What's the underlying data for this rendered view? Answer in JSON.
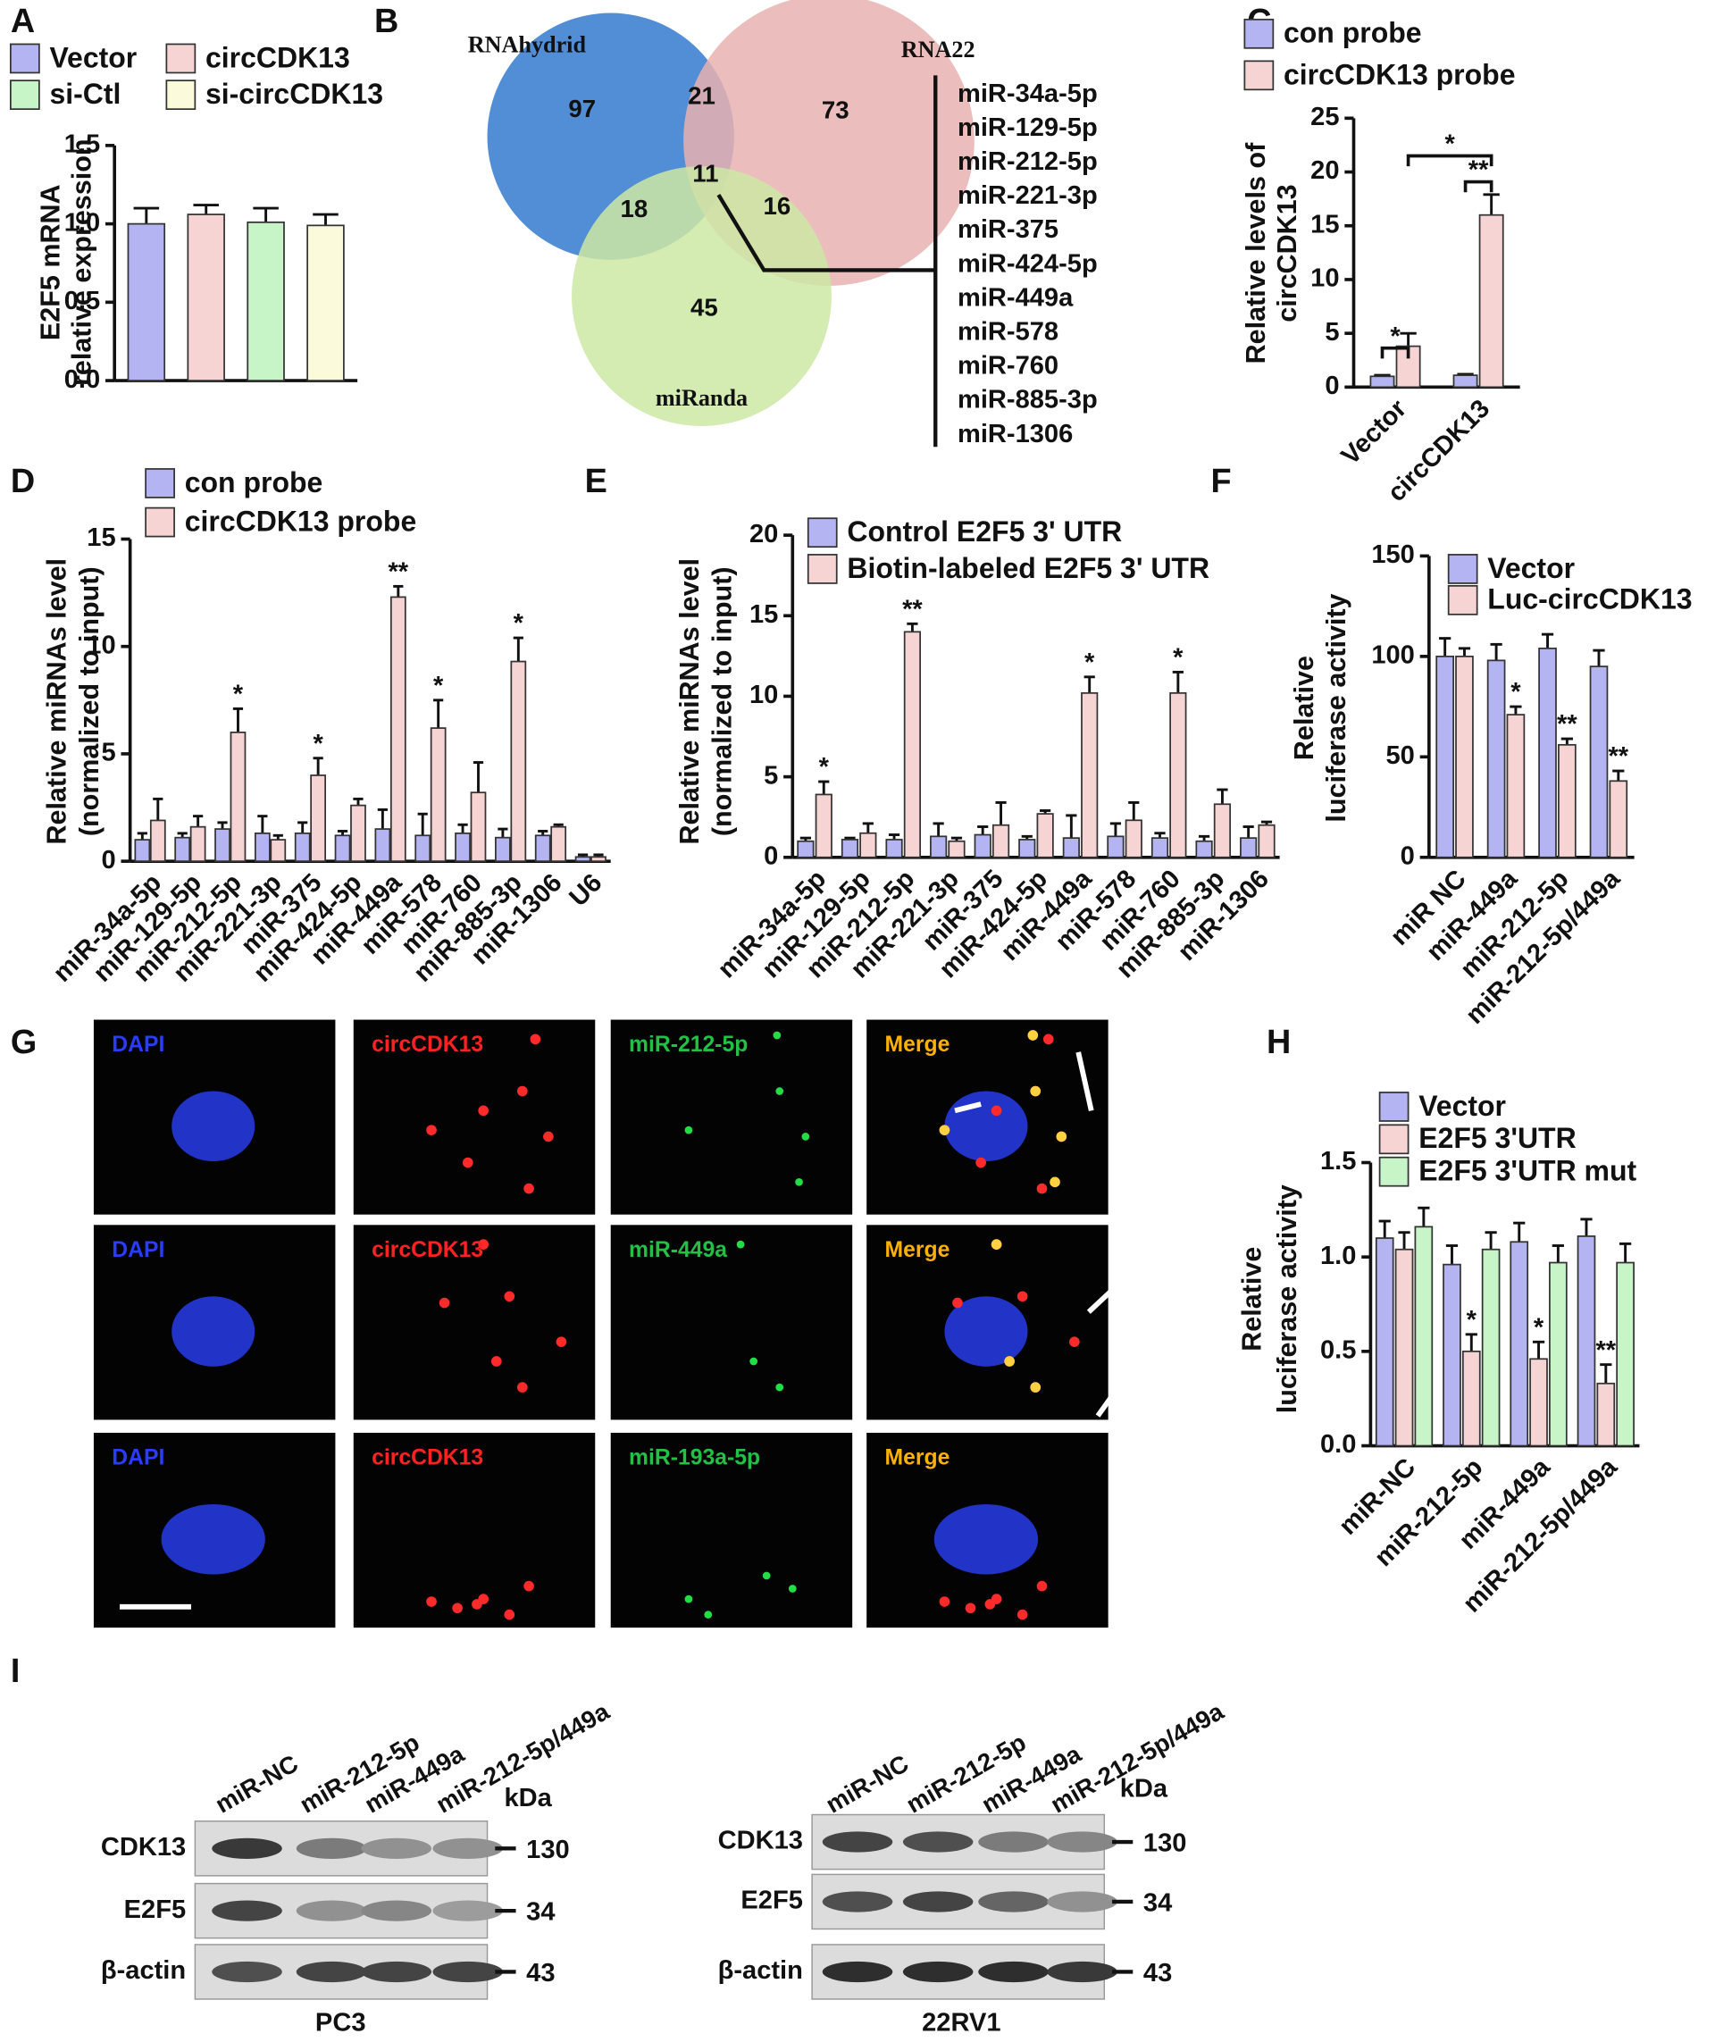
{
  "chart_data": [
    {
      "type": "bar",
      "panel": "A",
      "ylabel": [
        "E2F5 mRNA",
        "relative expression"
      ],
      "categories": [
        null
      ],
      "series": [
        {
          "name": "Vector",
          "color": "#b4b4f2",
          "values": [
            1.0
          ],
          "errors": [
            0.1
          ]
        },
        {
          "name": "circCDK13",
          "color": "#f7d4d4",
          "values": [
            1.06
          ],
          "errors": [
            0.06
          ]
        },
        {
          "name": "si-Ctl",
          "color": "#c8f5c8",
          "values": [
            1.01
          ],
          "errors": [
            0.09
          ]
        },
        {
          "name": "si-circCDK13",
          "color": "#fbfbdc",
          "values": [
            0.99
          ],
          "errors": [
            0.07
          ]
        }
      ],
      "ylim": [
        0,
        1.5
      ],
      "yticks": [
        {
          "value": 0,
          "label": "0.0"
        },
        {
          "value": 0.5,
          "label": "0.5"
        },
        {
          "value": 1,
          "label": "1.0"
        },
        {
          "value": 1.5,
          "label": "1.5"
        }
      ]
    },
    {
      "type": "bar",
      "panel": "C",
      "ylabel": [
        "Relative levels of",
        "circCDK13"
      ],
      "categories": [
        "Vector",
        "circCDK13"
      ],
      "series": [
        {
          "name": "con probe",
          "color": "#b4b4f2",
          "values": [
            1.0,
            1.1
          ],
          "errors": [
            0.1,
            0.1
          ]
        },
        {
          "name": "circCDK13 probe",
          "color": "#f7d4d4",
          "values": [
            3.8,
            16.0
          ],
          "errors": [
            1.2,
            1.9
          ]
        }
      ],
      "annotations": [
        "*",
        "**",
        "*"
      ],
      "ylim": [
        0,
        25
      ],
      "yticks": [
        0,
        5,
        10,
        15,
        20,
        25
      ]
    },
    {
      "type": "bar",
      "panel": "D",
      "ylabel": [
        "Relative miRNAs level",
        "(normalized to input)"
      ],
      "categories": [
        "miR-34a-5p",
        "miR-129-5p",
        "miR-212-5p",
        "miR-221-3p",
        "miR-375",
        "miR-424-5p",
        "miR-449a",
        "miR-578",
        "miR-760",
        "miR-885-3p",
        "miR-1306",
        "U6"
      ],
      "series": [
        {
          "name": "con probe",
          "color": "#b4b4f2",
          "values": [
            1.0,
            1.1,
            1.5,
            1.3,
            1.3,
            1.2,
            1.5,
            1.2,
            1.3,
            1.1,
            1.2,
            0.2
          ],
          "errors": [
            0.3,
            0.2,
            0.3,
            0.8,
            0.5,
            0.2,
            0.9,
            1.0,
            0.4,
            0.4,
            0.2,
            0.1
          ]
        },
        {
          "name": "circCDK13 probe",
          "color": "#f7d4d4",
          "values": [
            1.9,
            1.6,
            6.0,
            1.0,
            4.0,
            2.6,
            12.3,
            6.2,
            3.2,
            9.3,
            1.6,
            0.2
          ],
          "errors": [
            1.0,
            0.5,
            1.1,
            0.2,
            0.8,
            0.3,
            0.5,
            1.3,
            1.4,
            1.1,
            0.1,
            0.1
          ],
          "stars": [
            null,
            null,
            "*",
            null,
            "*",
            null,
            "**",
            "*",
            null,
            "*",
            null,
            null
          ]
        }
      ],
      "ylim": [
        0,
        15
      ],
      "yticks": [
        0,
        5,
        10,
        15
      ]
    },
    {
      "type": "bar",
      "panel": "E",
      "ylabel": [
        "Relative miRNAs level",
        "(normalized to input)"
      ],
      "categories": [
        "miR-34a-5p",
        "miR-129-5p",
        "miR-212-5p",
        "miR-221-3p",
        "miR-375",
        "miR-424-5p",
        "miR-449a",
        "miR-578",
        "miR-760",
        "miR-885-3p",
        "miR-1306"
      ],
      "series": [
        {
          "name": "Control E2F5 3' UTR",
          "color": "#b4b4f2",
          "values": [
            1.0,
            1.1,
            1.1,
            1.3,
            1.4,
            1.1,
            1.2,
            1.3,
            1.2,
            1.0,
            1.2
          ],
          "errors": [
            0.2,
            0.1,
            0.3,
            0.8,
            0.5,
            0.2,
            1.4,
            0.8,
            0.3,
            0.3,
            0.7
          ]
        },
        {
          "name": "Biotin-labeled E2F5 3' UTR",
          "color": "#f7d4d4",
          "values": [
            3.9,
            1.5,
            14.0,
            1.0,
            2.0,
            2.7,
            10.2,
            2.3,
            10.2,
            3.3,
            2.0
          ],
          "errors": [
            0.8,
            0.6,
            0.5,
            0.2,
            1.4,
            0.2,
            1.0,
            1.1,
            1.3,
            0.9,
            0.2
          ],
          "stars": [
            "*",
            null,
            "**",
            null,
            null,
            null,
            "*",
            null,
            "*",
            null,
            null
          ]
        }
      ],
      "ylim": [
        0,
        20
      ],
      "yticks": [
        0,
        5,
        10,
        15,
        20
      ]
    },
    {
      "type": "bar",
      "panel": "F",
      "ylabel": [
        "Relative",
        "luciferase activity"
      ],
      "categories": [
        "miR NC",
        "miR-449a",
        "miR-212-5p",
        "miR-212-5p/449a"
      ],
      "series": [
        {
          "name": "Vector",
          "color": "#b4b4f2",
          "values": [
            100,
            98,
            104,
            95
          ],
          "errors": [
            9,
            8,
            7,
            8
          ]
        },
        {
          "name": "Luc-circCDK13",
          "color": "#f7d4d4",
          "values": [
            100,
            71,
            56,
            38
          ],
          "errors": [
            4,
            4,
            3,
            5
          ],
          "stars": [
            null,
            "*",
            "**",
            "**"
          ]
        }
      ],
      "ylim": [
        0,
        150
      ],
      "yticks": [
        0,
        50,
        100,
        150
      ]
    },
    {
      "type": "bar",
      "panel": "H",
      "ylabel": [
        "Relative",
        "luciferase activity"
      ],
      "categories": [
        "miR-NC",
        "miR-212-5p",
        "miR-449a",
        "miR-212-5p/449a"
      ],
      "series": [
        {
          "name": "Vector",
          "color": "#b4b4f2",
          "values": [
            1.1,
            0.96,
            1.08,
            1.11
          ],
          "errors": [
            0.09,
            0.1,
            0.1,
            0.09
          ]
        },
        {
          "name": "E2F5 3'UTR",
          "color": "#f7d4d4",
          "values": [
            1.04,
            0.5,
            0.46,
            0.33
          ],
          "errors": [
            0.09,
            0.09,
            0.09,
            0.1
          ],
          "stars": [
            null,
            "*",
            "*",
            "**"
          ]
        },
        {
          "name": "E2F5 3'UTR mut",
          "color": "#c8f5c8",
          "values": [
            1.16,
            1.04,
            0.97,
            0.97
          ],
          "errors": [
            0.1,
            0.09,
            0.09,
            0.1
          ]
        }
      ],
      "ylim": [
        0,
        1.5
      ],
      "yticks": [
        {
          "value": 0,
          "label": "0.0"
        },
        {
          "value": 0.5,
          "label": "0.5"
        },
        {
          "value": 1,
          "label": "1.0"
        },
        {
          "value": 1.5,
          "label": "1.5"
        }
      ]
    }
  ],
  "venn": {
    "panel": "B",
    "sets": [
      "RNAhydrid",
      "RNA22",
      "miRanda"
    ],
    "region_counts": [
      97,
      21,
      73,
      18,
      11,
      16,
      45
    ],
    "overlap_list": [
      "miR-34a-5p",
      "miR-129-5p",
      "miR-212-5p",
      "miR-221-3p",
      "miR-375",
      "miR-424-5p",
      "miR-449a",
      "miR-578",
      "miR-760",
      "miR-885-3p",
      "miR-1306"
    ]
  },
  "microscopy": {
    "panel": "G",
    "rows": [
      [
        "DAPI",
        "circCDK13",
        "miR-212-5p",
        "Merge"
      ],
      [
        "DAPI",
        "circCDK13",
        "miR-449a",
        "Merge"
      ],
      [
        "DAPI",
        "circCDK13",
        "miR-193a-5p",
        "Merge"
      ]
    ]
  },
  "western_blots": {
    "panel": "I",
    "unit": "kDa",
    "blots": [
      {
        "cell_line": "PC3",
        "lanes": [
          "miR-NC",
          "miR-212-5p",
          "miR-449a",
          "miR-212-5p/449a"
        ],
        "proteins": [
          "CDK13",
          "E2F5",
          "β-actin"
        ],
        "markers": [
          130,
          34,
          43
        ]
      },
      {
        "cell_line": "22RV1",
        "lanes": [
          "miR-NC",
          "miR-212-5p",
          "miR-449a",
          "miR-212-5p/449a"
        ],
        "proteins": [
          "CDK13",
          "E2F5",
          "β-actin"
        ],
        "markers": [
          130,
          34,
          43
        ]
      }
    ]
  }
}
